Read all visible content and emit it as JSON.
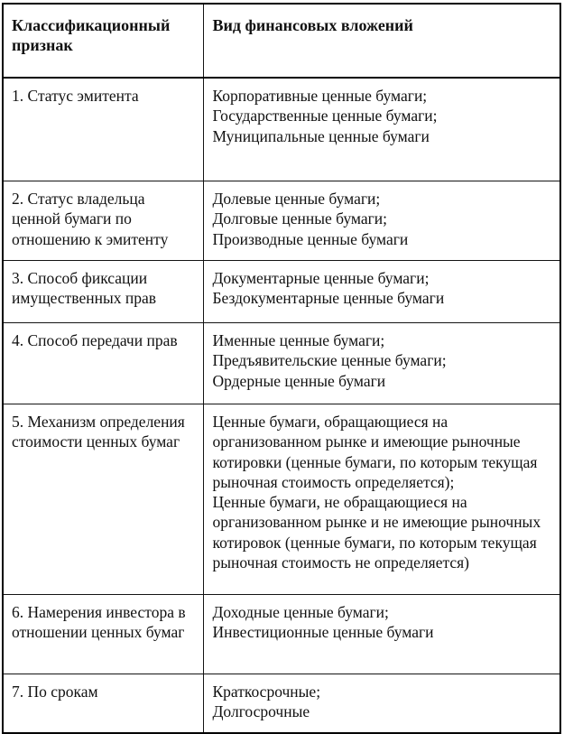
{
  "table": {
    "headers": [
      "Классификационный признак",
      "Вид финансовых вложений"
    ],
    "rows": [
      {
        "attribute": "1. Статус эмитента",
        "types": [
          "Корпоративные ценные бумаги;",
          "Государственные ценные бумаги;",
          "Муниципальные ценные бумаги"
        ]
      },
      {
        "attribute": "2. Статус владельца ценной бумаги по отношению к эмитенту",
        "types": [
          "Долевые ценные бумаги;",
          "Долговые ценные бумаги;",
          "Производные ценные бумаги"
        ]
      },
      {
        "attribute": "3. Способ фиксации имущественных прав",
        "types": [
          "Документарные ценные бумаги;",
          "Бездокументарные ценные бумаги"
        ]
      },
      {
        "attribute": "4. Способ передачи прав",
        "types": [
          "Именные ценные бумаги;",
          "Предъявительские ценные бумаги;",
          "Ордерные ценные бумаги"
        ]
      },
      {
        "attribute": "5. Механизм определения стоимости ценных бумаг",
        "types": [
          "Ценные бумаги, обращающиеся на организованном рынке и имеющие рыночные котировки (ценные бумаги, по которым текущая рыночная стоимость определяется);",
          "Ценные бумаги, не обращающиеся на организованном рынке и не имеющие рыночных котировок (ценные бумаги, по которым текущая рыночная стоимость не определяется)"
        ]
      },
      {
        "attribute": "6. Намерения инвестора в отношении ценных бумаг",
        "types": [
          "Доходные ценные бумаги;",
          "Инвестиционные ценные бумаги"
        ]
      },
      {
        "attribute": "7. По срокам",
        "types": [
          "Краткосрочные;",
          "Долгосрочные"
        ]
      }
    ]
  },
  "colors": {
    "border": "#000000",
    "text": "#111111",
    "background": "#ffffff"
  }
}
